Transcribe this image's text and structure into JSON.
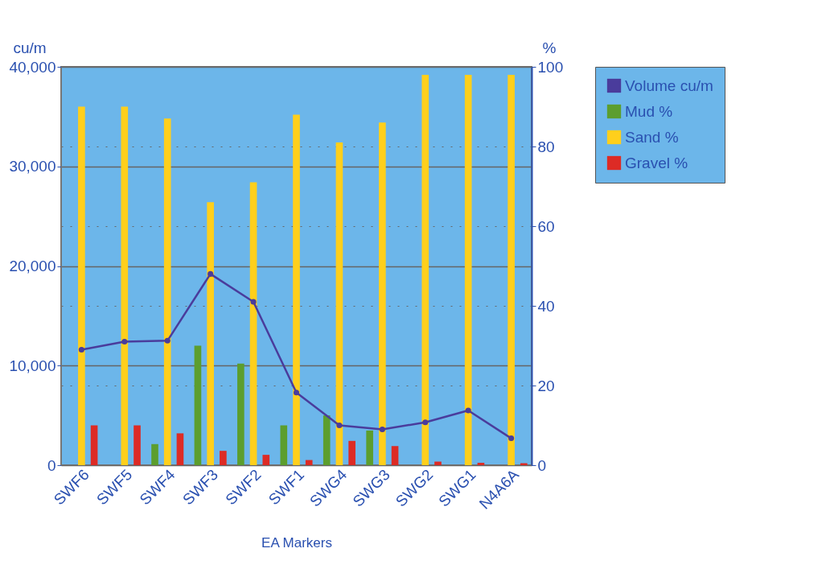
{
  "chart_data": {
    "type": "bar",
    "xlabel": "EA Markers",
    "ylabel": "cu/m",
    "y2label": "%",
    "categories": [
      "SWF6",
      "SWF5",
      "SWF4",
      "SWF3",
      "SWF2",
      "SWF1",
      "SWG4",
      "SWG3",
      "SWG2",
      "SWG1",
      "N4A6A"
    ],
    "series": [
      {
        "name": "Volume cu/m",
        "type": "line",
        "axis": "y",
        "color": "#4a3c9c",
        "values": [
          11600,
          12400,
          12500,
          19200,
          16400,
          7300,
          4000,
          3600,
          4300,
          5500,
          2700
        ]
      },
      {
        "name": "Mud %",
        "axis": "y2",
        "color": "#5c9e2e",
        "values": [
          0,
          0,
          5.3,
          30,
          25.5,
          10,
          12.5,
          8.7,
          0,
          0,
          0
        ]
      },
      {
        "name": "Sand %",
        "axis": "y2",
        "color": "#ffcf1c",
        "values": [
          90,
          90,
          87,
          66,
          71,
          88,
          81,
          86,
          98,
          98,
          98
        ]
      },
      {
        "name": "Gravel %",
        "axis": "y2",
        "color": "#dd2b25",
        "values": [
          10,
          10,
          8,
          3.6,
          2.6,
          1.3,
          6.1,
          4.8,
          0.9,
          0.6,
          0.5
        ]
      }
    ],
    "ylim": [
      0,
      40000
    ],
    "yticks": [
      {
        "value": 0,
        "label": "0"
      },
      {
        "value": 10000,
        "label": "10,000"
      },
      {
        "value": 20000,
        "label": "20,000"
      },
      {
        "value": 30000,
        "label": "30,000"
      },
      {
        "value": 40000,
        "label": "40,000"
      }
    ],
    "y2lim": [
      0,
      100
    ],
    "y2ticks": [
      0,
      20,
      40,
      60,
      80,
      100
    ],
    "grid": true,
    "legend": "right",
    "marker": "circle",
    "line_style": "solid"
  }
}
